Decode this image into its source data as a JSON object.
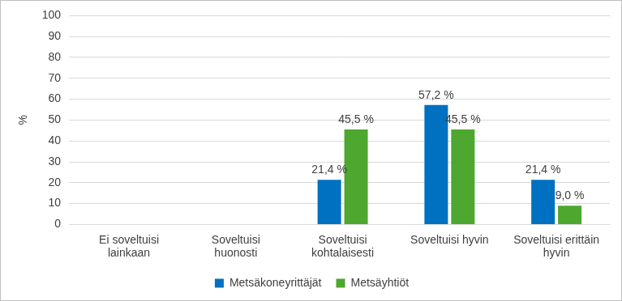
{
  "chart_data": {
    "type": "bar",
    "y_label": "%",
    "categories": [
      "Ei soveltuisi lainkaan",
      "Soveltuisi huonosti",
      "Soveltuisi kohtalaisesti",
      "Soveltuisi hyvin",
      "Soveltuisi erittäin hyvin"
    ],
    "series": [
      {
        "name": "Metsäkoneyrittäjät",
        "color": "#0070c0",
        "values": [
          null,
          null,
          21.4,
          57.2,
          21.4
        ],
        "value_labels": [
          null,
          null,
          "21,4 %",
          "57,2 %",
          "21,4 %"
        ]
      },
      {
        "name": "Metsäyhtiöt",
        "color": "#4ea72e",
        "values": [
          null,
          null,
          45.5,
          45.5,
          9.0
        ],
        "value_labels": [
          null,
          null,
          "45,5 %",
          "45,5 %",
          "9,0 %"
        ]
      }
    ],
    "ylim": [
      0,
      100
    ],
    "yticks": [
      0,
      10,
      20,
      30,
      40,
      50,
      60,
      70,
      80,
      90,
      100
    ],
    "grid": true,
    "legend": "bottom",
    "data_labels": true
  }
}
